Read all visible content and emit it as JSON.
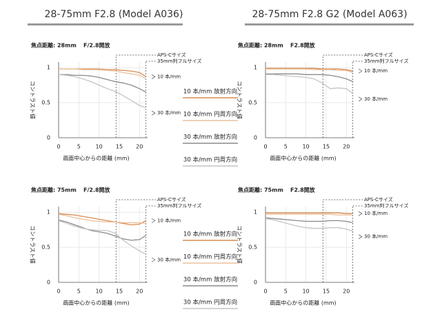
{
  "headers": [
    "28-75mm F2.8 (Model A036)",
    "28-75mm F2.8 G2 (Model A063)"
  ],
  "chart_data": [
    {
      "type": "line",
      "subtitle": "焦点距離: 28mm",
      "aperture": "F/2.8開放",
      "y_label": "コントラスト値",
      "x_label": "画面中心からの距離 (mm)",
      "x": [
        0,
        2,
        4,
        6,
        8,
        10,
        12,
        14,
        16,
        18,
        20,
        21.6
      ],
      "xlim": [
        0,
        22
      ],
      "ylim": [
        0,
        1.08
      ],
      "xticks": [
        0,
        5,
        10,
        15,
        20
      ],
      "yticks": [
        0,
        0.5,
        1
      ],
      "grid": true,
      "markers": [
        {
          "label": "APS-Cサイズ",
          "x": 14.2
        },
        {
          "label": "35mm判フルサイズ",
          "x": 21.6
        }
      ],
      "annotations": [
        "10 本/mm",
        "30 本/mm"
      ],
      "series": [
        {
          "name": "10 本/mm 放射方向",
          "color": "#d98a4e",
          "values": [
            0.98,
            0.98,
            0.98,
            0.98,
            0.98,
            0.98,
            0.97,
            0.97,
            0.96,
            0.95,
            0.93,
            0.87
          ]
        },
        {
          "name": "10 本/mm 円周方向",
          "color": "#ecc09c",
          "values": [
            0.98,
            0.98,
            0.98,
            0.97,
            0.97,
            0.97,
            0.96,
            0.95,
            0.93,
            0.91,
            0.89,
            0.84
          ]
        },
        {
          "name": "30 本/mm 放射方向",
          "color": "#8a8a8a",
          "values": [
            0.9,
            0.9,
            0.89,
            0.89,
            0.88,
            0.86,
            0.83,
            0.8,
            0.78,
            0.75,
            0.7,
            0.65
          ]
        },
        {
          "name": "30 本/mm 円周方向",
          "color": "#c4c4c4",
          "values": [
            0.9,
            0.89,
            0.87,
            0.84,
            0.8,
            0.75,
            0.7,
            0.66,
            0.6,
            0.53,
            0.46,
            0.43
          ]
        }
      ]
    },
    {
      "type": "line",
      "subtitle": "焦点距離: 28mm",
      "aperture": "F2.8開放",
      "y_label": "コントラスト値",
      "x_label": "画面中心からの距離 (mm)",
      "x": [
        0,
        2,
        4,
        6,
        8,
        10,
        12,
        14,
        16,
        18,
        20,
        21.6
      ],
      "xlim": [
        0,
        22
      ],
      "ylim": [
        0,
        1.08
      ],
      "xticks": [
        0,
        5,
        10,
        15,
        20
      ],
      "yticks": [
        0,
        0.5,
        1
      ],
      "grid": true,
      "markers": [
        {
          "label": "APS-Cサイズ",
          "x": 14.2
        },
        {
          "label": "35mm判フルサイズ",
          "x": 21.6
        }
      ],
      "annotations": [
        "10 本/mm",
        "30 本/mm"
      ],
      "series": [
        {
          "name": "10 本/mm 放射方向",
          "color": "#d98a4e",
          "values": [
            0.99,
            0.99,
            0.99,
            0.99,
            0.99,
            0.99,
            0.99,
            0.98,
            0.98,
            0.98,
            0.97,
            0.95
          ]
        },
        {
          "name": "10 本/mm 円周方向",
          "color": "#ecc09c",
          "values": [
            0.98,
            0.98,
            0.98,
            0.98,
            0.98,
            0.98,
            0.97,
            0.97,
            0.97,
            0.96,
            0.96,
            0.93
          ]
        },
        {
          "name": "30 本/mm 放射方向",
          "color": "#8a8a8a",
          "values": [
            0.91,
            0.91,
            0.91,
            0.91,
            0.91,
            0.9,
            0.9,
            0.9,
            0.89,
            0.87,
            0.84,
            0.8
          ]
        },
        {
          "name": "30 本/mm 円周方向",
          "color": "#c4c4c4",
          "values": [
            0.9,
            0.9,
            0.89,
            0.88,
            0.87,
            0.86,
            0.84,
            0.78,
            0.7,
            0.71,
            0.7,
            0.63
          ]
        }
      ]
    },
    {
      "type": "line",
      "subtitle": "焦点距離: 75mm",
      "aperture": "F/2.8開放",
      "y_label": "コントラスト値",
      "x_label": "画面中心からの距離 (mm)",
      "x": [
        0,
        2,
        4,
        6,
        8,
        10,
        12,
        14,
        16,
        18,
        20,
        21.6
      ],
      "xlim": [
        0,
        22
      ],
      "ylim": [
        0,
        1.08
      ],
      "xticks": [
        0,
        5,
        10,
        15,
        20
      ],
      "yticks": [
        0,
        0.5,
        1
      ],
      "grid": true,
      "markers": [
        {
          "label": "APS-Cサイズ",
          "x": 14.2
        },
        {
          "label": "35mm判フルサイズ",
          "x": 21.6
        }
      ],
      "annotations": [
        "10 本/mm",
        "30 本/mm"
      ],
      "series": [
        {
          "name": "10 本/mm 放射方向",
          "color": "#d98a4e",
          "values": [
            0.98,
            0.97,
            0.96,
            0.94,
            0.92,
            0.9,
            0.88,
            0.86,
            0.84,
            0.82,
            0.83,
            0.88
          ]
        },
        {
          "name": "10 本/mm 円周方向",
          "color": "#ecc09c",
          "values": [
            0.97,
            0.95,
            0.92,
            0.9,
            0.88,
            0.87,
            0.86,
            0.86,
            0.85,
            0.85,
            0.85,
            0.84
          ]
        },
        {
          "name": "30 本/mm 放射方向",
          "color": "#8a8a8a",
          "values": [
            0.89,
            0.86,
            0.82,
            0.78,
            0.74,
            0.72,
            0.7,
            0.66,
            0.62,
            0.6,
            0.61,
            0.67
          ]
        },
        {
          "name": "30 本/mm 円周方向",
          "color": "#c4c4c4",
          "values": [
            0.88,
            0.84,
            0.8,
            0.77,
            0.75,
            0.74,
            0.74,
            0.7,
            0.6,
            0.52,
            0.45,
            0.4
          ]
        }
      ]
    },
    {
      "type": "line",
      "subtitle": "焦点距離: 75mm",
      "aperture": "F2.8開放",
      "y_label": "コントラスト値",
      "x_label": "画面中心からの距離 (mm)",
      "x": [
        0,
        2,
        4,
        6,
        8,
        10,
        12,
        14,
        16,
        18,
        20,
        21.6
      ],
      "xlim": [
        0,
        22
      ],
      "ylim": [
        0,
        1.08
      ],
      "xticks": [
        0,
        5,
        10,
        15,
        20
      ],
      "yticks": [
        0,
        0.5,
        1
      ],
      "grid": true,
      "markers": [
        {
          "label": "APS-Cサイズ",
          "x": 14.2
        },
        {
          "label": "35mm判フルサイズ",
          "x": 21.6
        }
      ],
      "annotations": [
        "10 本/mm",
        "30 本/mm"
      ],
      "series": [
        {
          "name": "10 本/mm 放射方向",
          "color": "#d98a4e",
          "values": [
            0.99,
            0.99,
            0.99,
            0.99,
            0.99,
            0.99,
            0.99,
            0.99,
            0.99,
            0.99,
            0.98,
            0.98
          ]
        },
        {
          "name": "10 本/mm 円周方向",
          "color": "#ecc09c",
          "values": [
            0.97,
            0.97,
            0.97,
            0.97,
            0.97,
            0.97,
            0.97,
            0.97,
            0.97,
            0.96,
            0.96,
            0.96
          ]
        },
        {
          "name": "30 本/mm 放射方向",
          "color": "#8a8a8a",
          "values": [
            0.92,
            0.91,
            0.9,
            0.89,
            0.88,
            0.87,
            0.87,
            0.87,
            0.88,
            0.88,
            0.87,
            0.85
          ]
        },
        {
          "name": "30 本/mm 円周方向",
          "color": "#c4c4c4",
          "values": [
            0.91,
            0.89,
            0.86,
            0.83,
            0.8,
            0.78,
            0.77,
            0.77,
            0.78,
            0.78,
            0.76,
            0.73
          ]
        }
      ]
    }
  ]
}
